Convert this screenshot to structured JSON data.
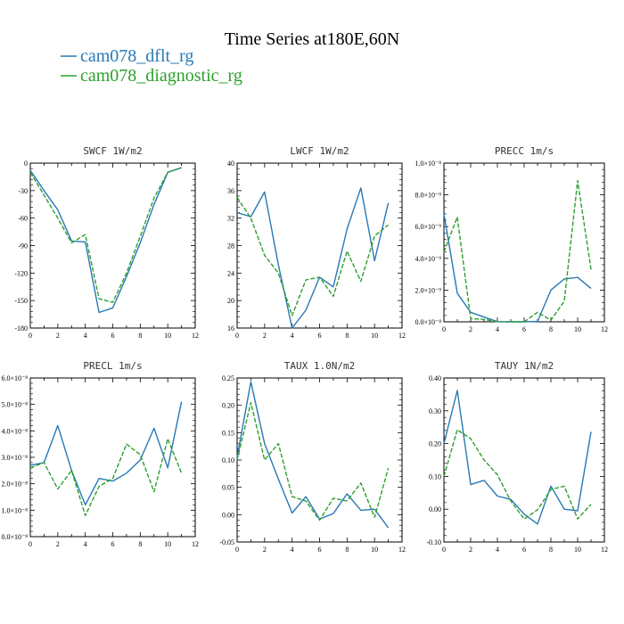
{
  "figure": {
    "title": "Time Series at180E,60N",
    "legend": [
      {
        "label": "cam078_dflt_rg",
        "color": "#2878b5"
      },
      {
        "label": "cam078_diagnostic_rg",
        "color": "#2ca02c"
      }
    ]
  },
  "chart_data": [
    {
      "type": "line",
      "title": "SWCF   1W/m2",
      "x": [
        0,
        1,
        2,
        3,
        4,
        5,
        6,
        7,
        8,
        9,
        10,
        11
      ],
      "xlim": [
        0,
        12
      ],
      "xticks": [
        0,
        2,
        4,
        6,
        8,
        10,
        12
      ],
      "ylim": [
        -180,
        0
      ],
      "yticks": [
        -180,
        -150,
        -120,
        -90,
        -60,
        -30,
        0
      ],
      "ytick_labels": [
        "-180",
        "-150",
        "-120",
        "-90",
        "-60",
        "-30",
        "0"
      ],
      "series": [
        {
          "name": "cam078_dflt_rg",
          "values": [
            -8,
            -30,
            -51,
            -85,
            -86,
            -163,
            -158,
            -124,
            -87,
            -45,
            -10,
            -5
          ],
          "color": "#2878b5",
          "dash": ""
        },
        {
          "name": "cam078_diagnostic_rg",
          "values": [
            -10,
            -35,
            -60,
            -87,
            -78,
            -148,
            -152,
            -120,
            -80,
            -38,
            -10,
            -5
          ],
          "color": "#2ca02c",
          "dash": "5,2"
        }
      ]
    },
    {
      "type": "line",
      "title": "LWCF   1W/m2",
      "x": [
        0,
        1,
        2,
        3,
        4,
        5,
        6,
        7,
        8,
        9,
        10,
        11
      ],
      "xlim": [
        0,
        12
      ],
      "xticks": [
        0,
        2,
        4,
        6,
        8,
        10,
        12
      ],
      "ylim": [
        16,
        40
      ],
      "yticks": [
        16,
        20,
        24,
        28,
        32,
        36,
        40
      ],
      "ytick_labels": [
        "16",
        "20",
        "24",
        "28",
        "32",
        "36",
        "40"
      ],
      "series": [
        {
          "name": "cam078_dflt_rg",
          "values": [
            32.8,
            32.2,
            35.8,
            25.2,
            16.0,
            18.6,
            23.4,
            22.0,
            30.4,
            36.4,
            25.8,
            34.2
          ],
          "color": "#2878b5",
          "dash": ""
        },
        {
          "name": "cam078_diagnostic_rg",
          "values": [
            35.0,
            32.0,
            26.6,
            24.0,
            17.8,
            23.0,
            23.4,
            20.6,
            27.2,
            22.8,
            29.4,
            31.0
          ],
          "color": "#2ca02c",
          "dash": "5,2"
        }
      ]
    },
    {
      "type": "line",
      "title": "PRECC   1m/s",
      "x": [
        0,
        1,
        2,
        3,
        4,
        5,
        6,
        7,
        8,
        9,
        10,
        11
      ],
      "xlim": [
        0,
        12
      ],
      "xticks": [
        0,
        2,
        4,
        6,
        8,
        10,
        12
      ],
      "ylim": [
        0,
        1e-08
      ],
      "yticks": [
        0,
        2e-09,
        4e-09,
        6e-09,
        8e-09,
        1e-08
      ],
      "ytick_labels": [
        "0.0×10⁻⁸",
        "2.0×10⁻⁹",
        "4.0×10⁻⁹",
        "6.0×10⁻⁹",
        "8.0×10⁻⁹",
        "1.0×10⁻⁸"
      ],
      "series": [
        {
          "name": "cam078_dflt_rg",
          "values": [
            6.8e-09,
            1.8e-09,
            6e-10,
            3e-10,
            1e-11,
            0,
            0,
            2e-11,
            2e-09,
            2.7e-09,
            2.8e-09,
            2.1e-09
          ],
          "color": "#2878b5",
          "dash": ""
        },
        {
          "name": "cam078_diagnostic_rg",
          "values": [
            4.4e-09,
            6.6e-09,
            2e-10,
            1.5e-10,
            0,
            0,
            0,
            6e-10,
            1e-10,
            1.3e-09,
            8.9e-09,
            3.3e-09
          ],
          "color": "#2ca02c",
          "dash": "5,2"
        }
      ]
    },
    {
      "type": "line",
      "title": "PRECL   1m/s",
      "x": [
        0,
        1,
        2,
        3,
        4,
        5,
        6,
        7,
        8,
        9,
        10,
        11
      ],
      "xlim": [
        0,
        12
      ],
      "xticks": [
        0,
        2,
        4,
        6,
        8,
        10,
        12
      ],
      "ylim": [
        0,
        6
      ],
      "yticks": [
        0,
        1,
        2,
        3,
        4,
        5,
        6
      ],
      "ytick_labels": [
        "0.0×10⁻⁸",
        "1.0×10⁻⁸",
        "2.0×10⁻⁸",
        "3.0×10⁻⁸",
        "4.0×10⁻⁸",
        "5.0×10⁻⁸",
        "6.0×10⁻⁸"
      ],
      "series": [
        {
          "name": "cam078_dflt_rg",
          "values": [
            2.7,
            2.8,
            4.2,
            2.5,
            1.2,
            2.2,
            2.1,
            2.4,
            2.9,
            4.1,
            2.6,
            5.1
          ],
          "color": "#2878b5",
          "dash": ""
        },
        {
          "name": "cam078_diagnostic_rg",
          "values": [
            2.6,
            2.8,
            1.8,
            2.5,
            0.8,
            1.9,
            2.2,
            3.5,
            3.1,
            1.7,
            3.7,
            2.4
          ],
          "color": "#2ca02c",
          "dash": "5,2"
        }
      ]
    },
    {
      "type": "line",
      "title": "TAUX   1.0N/m2",
      "x": [
        0,
        1,
        2,
        3,
        4,
        5,
        6,
        7,
        8,
        9,
        10,
        11
      ],
      "xlim": [
        0,
        12
      ],
      "xticks": [
        0,
        2,
        4,
        6,
        8,
        10,
        12
      ],
      "ylim": [
        -0.05,
        0.25
      ],
      "yticks": [
        -0.05,
        0.0,
        0.05,
        0.1,
        0.15,
        0.2,
        0.25
      ],
      "ytick_labels": [
        "-0.05",
        "0.00",
        "0.05",
        "0.10",
        "0.15",
        "0.20",
        "0.25"
      ],
      "series": [
        {
          "name": "cam078_dflt_rg",
          "values": [
            0.105,
            0.243,
            0.13,
            0.065,
            0.003,
            0.033,
            -0.008,
            0.002,
            0.038,
            0.008,
            0.01,
            -0.024
          ],
          "color": "#2878b5",
          "dash": ""
        },
        {
          "name": "cam078_diagnostic_rg",
          "values": [
            0.1,
            0.205,
            0.1,
            0.13,
            0.033,
            0.025,
            -0.01,
            0.03,
            0.025,
            0.058,
            -0.005,
            0.085
          ],
          "color": "#2ca02c",
          "dash": "5,2"
        }
      ]
    },
    {
      "type": "line",
      "title": "TAUY   1N/m2",
      "x": [
        0,
        1,
        2,
        3,
        4,
        5,
        6,
        7,
        8,
        9,
        10,
        11
      ],
      "xlim": [
        0,
        12
      ],
      "xticks": [
        0,
        2,
        4,
        6,
        8,
        10,
        12
      ],
      "ylim": [
        -0.1,
        0.4
      ],
      "yticks": [
        -0.1,
        0.0,
        0.1,
        0.2,
        0.3,
        0.4
      ],
      "ytick_labels": [
        "-0.10",
        "0.00",
        "0.10",
        "0.20",
        "0.30",
        "0.40"
      ],
      "series": [
        {
          "name": "cam078_dflt_rg",
          "values": [
            0.2,
            0.362,
            0.075,
            0.088,
            0.04,
            0.03,
            -0.015,
            -0.045,
            0.07,
            0.0,
            -0.005,
            0.236
          ],
          "color": "#2878b5",
          "dash": ""
        },
        {
          "name": "cam078_diagnostic_rg",
          "values": [
            0.1,
            0.242,
            0.215,
            0.15,
            0.105,
            0.025,
            -0.03,
            -0.002,
            0.06,
            0.07,
            -0.03,
            0.015
          ],
          "color": "#2ca02c",
          "dash": "5,2"
        }
      ]
    }
  ]
}
